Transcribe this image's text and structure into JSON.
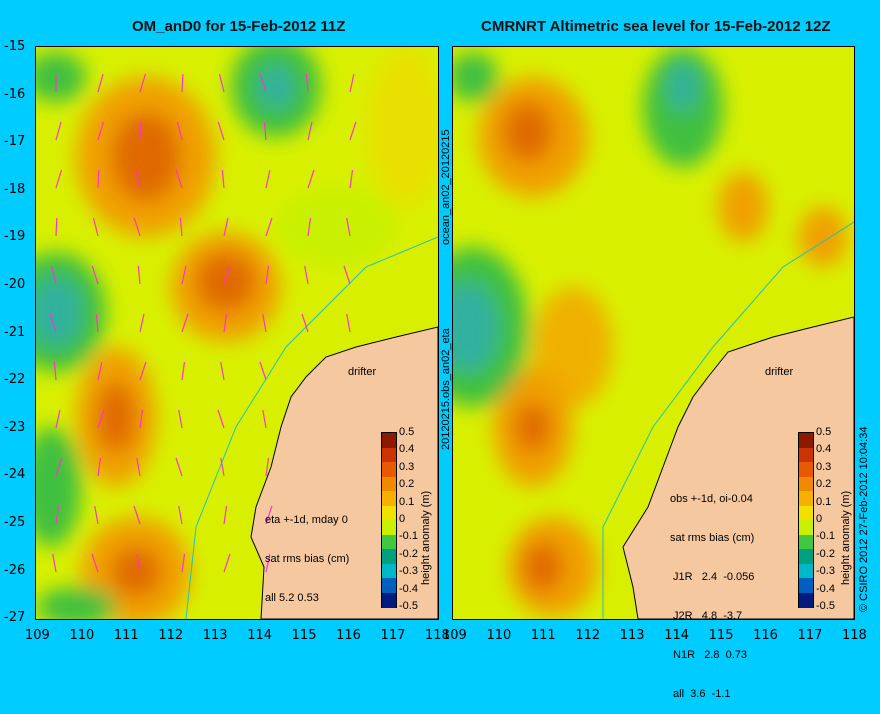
{
  "left": {
    "title": "OM_anD0 for 15-Feb-2012 11Z",
    "side_label": "ocean_an02_20120215",
    "note_lines": [
      "eta +-1d, mday 0",
      "sat rms bias (cm)",
      "all 5.2 0.53"
    ]
  },
  "right": {
    "title": "CMRNRT Altimetric sea level  for 15-Feb-2012 12Z",
    "side_label": "20120215.obs_an02_eta",
    "note_lines": [
      "obs +-1d, oi-0.04",
      "sat rms bias (cm)",
      " J1R   2.4  -0.056",
      " J2R   4.8  -3.7",
      " N1R   2.8  0.73",
      " all  3.6  -1.1"
    ],
    "copyright": "© CSIRO 2012  27-Feb-2012 10:04:34"
  },
  "drifter_label": "drifter",
  "colorbar": {
    "label": "height anomaly (m)",
    "ticks": [
      "0.5",
      "0.4",
      "0.3",
      "0.2",
      "0.1",
      "0",
      "-0.1",
      "-0.2",
      "-0.3",
      "-0.4",
      "-0.5"
    ],
    "colors": [
      "#8b1a00",
      "#cc3300",
      "#e85a00",
      "#f08a00",
      "#f5b000",
      "#f2e000",
      "#c8f000",
      "#40c840",
      "#00a080",
      "#00b8c8",
      "#0060c0",
      "#001a80"
    ]
  },
  "axes": {
    "y_ticks": [
      "-15",
      "-16",
      "-17",
      "-18",
      "-19",
      "-20",
      "-21",
      "-22",
      "-23",
      "-24",
      "-25",
      "-26",
      "-27"
    ],
    "x_ticks": [
      "109",
      "110",
      "111",
      "112",
      "113",
      "114",
      "115",
      "116",
      "117",
      "118"
    ]
  },
  "colors": {
    "land": "#f5c8a0",
    "background": "#00ccff",
    "vector": "#ff33cc",
    "coast": "#000000"
  }
}
